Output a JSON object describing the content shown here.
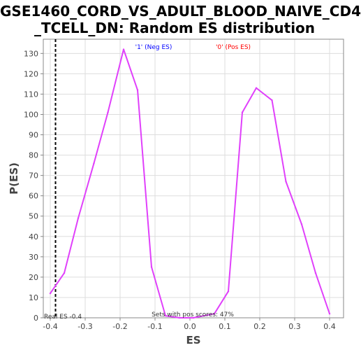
{
  "chart_data": {
    "type": "line",
    "title_lines": [
      "GSE1460_CORD_VS_ADULT_BLOOD_NAIVE_CD4",
      "_TCELL_DN: Random ES distribution"
    ],
    "xlabel": "ES",
    "ylabel": "P(ES)",
    "xlim": [
      -0.42,
      0.44
    ],
    "ylim": [
      0,
      137
    ],
    "x_ticks": [
      -0.4,
      -0.3,
      -0.2,
      -0.1,
      0.0,
      0.1,
      0.2,
      0.3,
      0.4
    ],
    "x_tick_labels": [
      "-0.4",
      "-0.3",
      "-0.2",
      "-0.1",
      "0.0",
      "0.1",
      "0.2",
      "0.3",
      "0.4"
    ],
    "y_ticks": [
      0,
      10,
      20,
      30,
      40,
      50,
      60,
      70,
      80,
      90,
      100,
      110,
      120,
      130
    ],
    "y_tick_labels": [
      "0",
      "10",
      "20",
      "30",
      "40",
      "50",
      "60",
      "70",
      "80",
      "90",
      "100",
      "110",
      "120",
      "130"
    ],
    "grid": true,
    "series": [
      {
        "color": "#e040fb",
        "x": [
          -0.4,
          -0.36,
          -0.32,
          -0.275,
          -0.235,
          -0.19,
          -0.15,
          -0.11,
          -0.07,
          -0.03,
          0.01,
          0.07,
          0.11,
          0.15,
          0.19,
          0.235,
          0.275,
          0.32,
          0.36,
          0.4
        ],
        "y": [
          12,
          22,
          49,
          76,
          101,
          132,
          112,
          25,
          1,
          0,
          0,
          2,
          13,
          101,
          113,
          107,
          67,
          46,
          22,
          2
        ]
      }
    ],
    "real_es": -0.385,
    "annotations": {
      "neg": "'1' (Neg ES)",
      "pos": "'0' (Pos ES)",
      "real_es": "Real ES -0.4",
      "pos_scores": "Sets with pos scores: 47%"
    },
    "colors": {
      "neg": "#0000ff",
      "pos": "#ff0000",
      "line": "#e040fb",
      "grid": "#dddddd"
    }
  }
}
